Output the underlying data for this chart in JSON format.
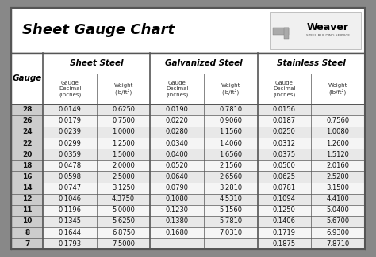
{
  "title": "Sheet Gauge Chart",
  "outer_bg": "#888888",
  "inner_bg": "#ffffff",
  "header_bg": "#d8d8d8",
  "row_bg_alt": "#e8e8e8",
  "row_bg_norm": "#f5f5f5",
  "gauge_col_bg": "#cccccc",
  "border_color": "#555555",
  "text_dark": "#111111",
  "text_mid": "#333333",
  "gauges": [
    28,
    26,
    24,
    22,
    20,
    18,
    16,
    14,
    12,
    11,
    10,
    8,
    7
  ],
  "sheet_steel_decimal": [
    "0.0149",
    "0.0179",
    "0.0239",
    "0.0299",
    "0.0359",
    "0.0478",
    "0.0598",
    "0.0747",
    "0.1046",
    "0.1196",
    "0.1345",
    "0.1644",
    "0.1793"
  ],
  "sheet_steel_weight": [
    "0.6250",
    "0.7500",
    "1.0000",
    "1.2500",
    "1.5000",
    "2.0000",
    "2.5000",
    "3.1250",
    "4.3750",
    "5.0000",
    "5.6250",
    "6.8750",
    "7.5000"
  ],
  "galvanized_decimal": [
    "0.0190",
    "0.0220",
    "0.0280",
    "0.0340",
    "0.0400",
    "0.0520",
    "0.0640",
    "0.0790",
    "0.1080",
    "0.1230",
    "0.1380",
    "0.1680",
    ""
  ],
  "galvanized_weight": [
    "0.7810",
    "0.9060",
    "1.1560",
    "1.4060",
    "1.6560",
    "2.1560",
    "2.6560",
    "3.2810",
    "4.5310",
    "5.1560",
    "5.7810",
    "7.0310",
    ""
  ],
  "stainless_decimal": [
    "0.0156",
    "0.0187",
    "0.0250",
    "0.0312",
    "0.0375",
    "0.0500",
    "0.0625",
    "0.0781",
    "0.1094",
    "0.1250",
    "0.1406",
    "0.1719",
    "0.1875"
  ],
  "stainless_weight": [
    "",
    "0.7560",
    "1.0080",
    "1.2600",
    "1.5120",
    "2.0160",
    "2.5200",
    "3.1500",
    "4.4100",
    "5.0400",
    "5.6700",
    "6.9300",
    "7.8710"
  ],
  "col_section_headers": [
    "Sheet Steel",
    "Galvanized Steel",
    "Stainless Steel"
  ],
  "col_sub_headers": [
    "Gauge\nDecimal\n(inches)",
    "Weight\n(lb/ft²)",
    "Gauge\nDecimal\n(inches)",
    "Weight\n(lb/ft²)",
    "Gauge\nDecimal\n(inches)",
    "Weight\n(lb/ft²)"
  ]
}
